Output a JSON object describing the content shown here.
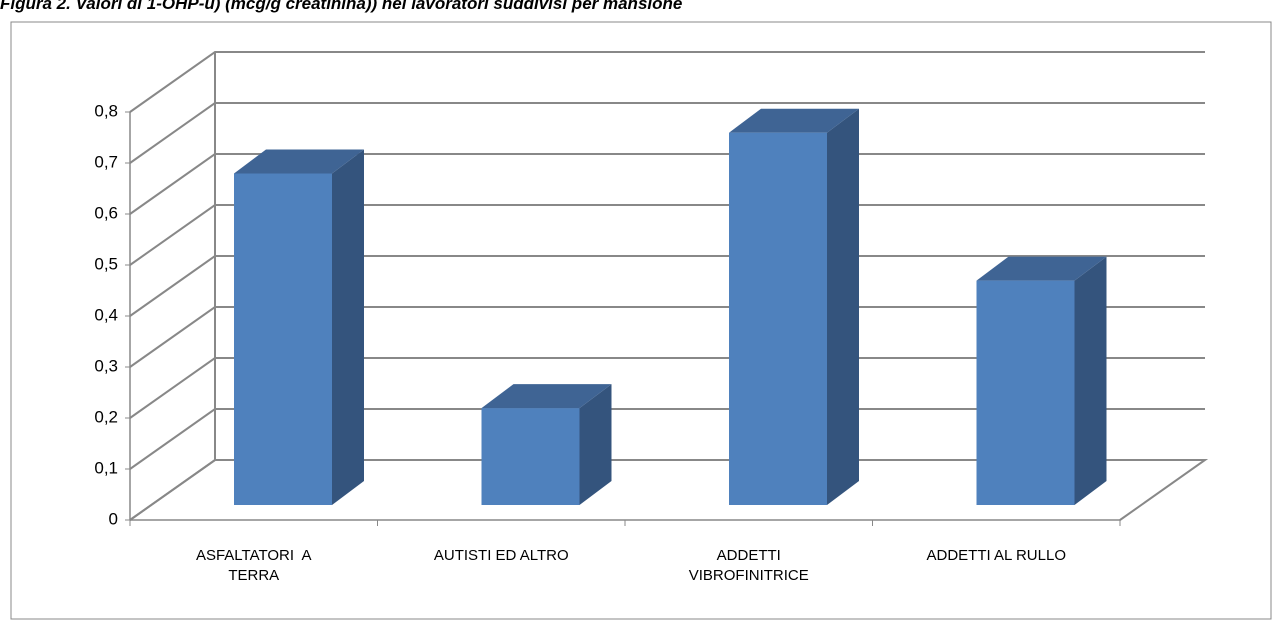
{
  "chart_data": {
    "type": "bar3d",
    "title": "Figura 2. Valori di 1-OHP-u) (mcg/g creatinina)) nei lavoratori suddivisi per mansione",
    "categories": [
      "ASFALTATORI  A TERRA",
      "AUTISTI ED ALTRO",
      "ADDETTI VIBROFINITRICE",
      "ADDETTI AL RULLO"
    ],
    "values": [
      0.65,
      0.19,
      0.73,
      0.44
    ],
    "color": "#4f81bd",
    "ylim": [
      0,
      0.8
    ],
    "yticks": [
      0,
      {
        "value": 0.1,
        "label": "0,1"
      },
      {
        "value": 0.2,
        "label": "0,2"
      },
      {
        "value": 0.3,
        "label": "0,3"
      },
      {
        "value": 0.4,
        "label": "0,4"
      },
      {
        "value": 0.5,
        "label": "0,5"
      },
      {
        "value": 0.6,
        "label": "0,6"
      },
      {
        "value": 0.7,
        "label": "0,7"
      },
      {
        "value": 0.8,
        "label": "0,8"
      }
    ],
    "grid": true
  }
}
